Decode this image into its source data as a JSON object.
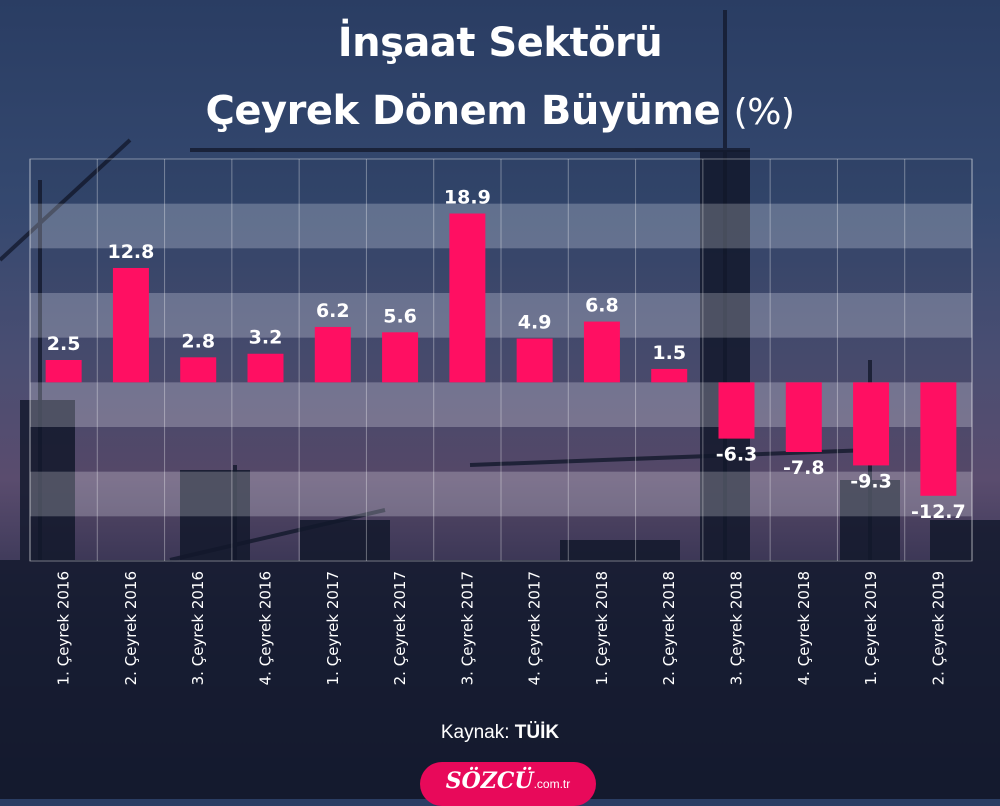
{
  "title_line1": "İnşaat Sektörü",
  "title_line2": "Çeyrek Dönem Büyüme",
  "title_unit": "(%)",
  "source_label": "Kaynak:",
  "source_value": "TÜİK",
  "brand_name": "SÖZCÜ",
  "brand_tld": ".com.tr",
  "colors": {
    "bar": "#ff0f62",
    "text": "#ffffff",
    "brand": "#e8095a"
  },
  "chart_data": {
    "type": "bar",
    "title": "İnşaat Sektörü Çeyrek Dönem Büyüme (%)",
    "xlabel": "",
    "ylabel": "",
    "categories": [
      "1. Çeyrek 2016",
      "2. Çeyrek 2016",
      "3. Çeyrek 2016",
      "4. Çeyrek 2016",
      "1. Çeyrek 2017",
      "2. Çeyrek 2017",
      "3. Çeyrek 2017",
      "4. Çeyrek 2017",
      "1. Çeyrek 2018",
      "2. Çeyrek 2018",
      "3. Çeyrek 2018",
      "4. Çeyrek 2018",
      "1. Çeyrek 2019",
      "2. Çeyrek 2019"
    ],
    "values": [
      2.5,
      12.8,
      2.8,
      3.2,
      6.2,
      5.6,
      18.9,
      4.9,
      6.8,
      1.5,
      -6.3,
      -7.8,
      -9.3,
      -12.7
    ],
    "ylim": [
      -20,
      25
    ],
    "grid": true,
    "legend": "none"
  }
}
